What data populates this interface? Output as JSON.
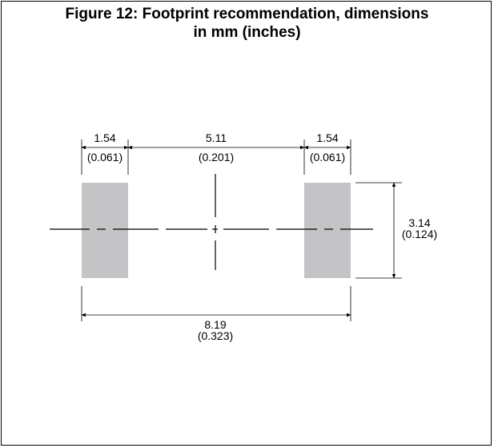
{
  "figure": {
    "title_line1": "Figure 12: Footprint recommendation, dimensions",
    "title_line2": "in mm (inches)"
  },
  "dimensions": {
    "pad_width_left": {
      "mm": "1.54",
      "in": "(0.061)"
    },
    "gap": {
      "mm": "5.11",
      "in": "(0.201)"
    },
    "pad_width_right": {
      "mm": "1.54",
      "in": "(0.061)"
    },
    "pad_height": {
      "mm": "3.14",
      "in": "(0.124)"
    },
    "overall_length": {
      "mm": "8.19",
      "in": "(0.323)"
    }
  },
  "colors": {
    "pad_fill": "#c4c4c6",
    "line": "#000000"
  }
}
